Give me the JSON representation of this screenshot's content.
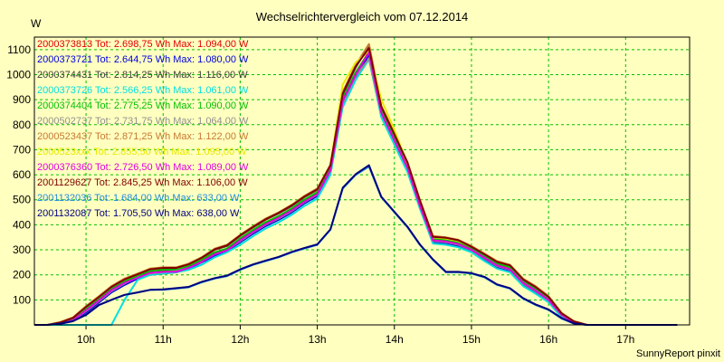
{
  "chart_data": {
    "type": "line",
    "title": "Wechselrichtervergleich vom 07.12.2014",
    "ylabel": "W",
    "credit": "SunnyReport pinxit",
    "x_ticks": [
      "10h",
      "11h",
      "12h",
      "13h",
      "14h",
      "15h",
      "16h",
      "17h"
    ],
    "y_ticks": [
      100,
      200,
      300,
      400,
      500,
      600,
      700,
      800,
      900,
      1000,
      1100
    ],
    "xlim": [
      9.33,
      17.83
    ],
    "ylim": [
      0,
      1150
    ],
    "grid": true,
    "legend_position": "top-left",
    "x": [
      9.33,
      9.5,
      9.67,
      9.83,
      10.0,
      10.17,
      10.33,
      10.5,
      10.67,
      10.83,
      11.0,
      11.17,
      11.33,
      11.5,
      11.67,
      11.83,
      12.0,
      12.17,
      12.33,
      12.5,
      12.67,
      12.83,
      13.0,
      13.17,
      13.33,
      13.5,
      13.67,
      13.83,
      14.0,
      14.17,
      14.33,
      14.5,
      14.67,
      14.83,
      15.0,
      15.17,
      15.33,
      15.5,
      15.67,
      15.83,
      16.0,
      16.17,
      16.33,
      16.5,
      16.67,
      16.83,
      17.0,
      17.17,
      17.33,
      17.5,
      17.67
    ],
    "series": [
      {
        "name": "2000373813",
        "legend": "2000373813 Tot: 2.698,75 Wh Max: 1.094,00 W",
        "color": "#e00000",
        "values": [
          0,
          0,
          5,
          20,
          60,
          100,
          140,
          170,
          190,
          210,
          215,
          215,
          230,
          255,
          285,
          300,
          340,
          375,
          405,
          430,
          460,
          495,
          525,
          620,
          900,
          1000,
          1094,
          850,
          740,
          630,
          480,
          340,
          335,
          325,
          300,
          270,
          240,
          225,
          170,
          140,
          100,
          40,
          10,
          0,
          0,
          0,
          0,
          0,
          0,
          0,
          0
        ]
      },
      {
        "name": "2000373721",
        "legend": "2000373721 Tot: 2.644,75 Wh Max: 1.080,00 W",
        "color": "#0000e0",
        "values": [
          0,
          0,
          5,
          15,
          50,
          90,
          130,
          160,
          185,
          200,
          205,
          210,
          225,
          250,
          275,
          295,
          330,
          365,
          395,
          420,
          450,
          485,
          515,
          610,
          880,
          990,
          1080,
          840,
          730,
          620,
          470,
          330,
          325,
          315,
          295,
          260,
          230,
          215,
          160,
          130,
          95,
          35,
          8,
          0,
          0,
          0,
          0,
          0,
          0,
          0,
          0
        ]
      },
      {
        "name": "2000374431",
        "legend": "2000374431 Tot: 2.814,25 Wh Max: 1.116,00 W",
        "color": "#404040",
        "values": [
          0,
          0,
          10,
          25,
          70,
          110,
          150,
          180,
          200,
          220,
          225,
          225,
          240,
          265,
          300,
          315,
          355,
          390,
          420,
          445,
          475,
          510,
          540,
          635,
          920,
          1030,
          1116,
          870,
          760,
          645,
          495,
          350,
          345,
          335,
          310,
          280,
          250,
          235,
          180,
          150,
          110,
          45,
          12,
          0,
          0,
          0,
          0,
          0,
          0,
          0,
          0
        ]
      },
      {
        "name": "2000373726",
        "legend": "2000373726 Tot: 2.566,25 Wh Max: 1.061,00 W",
        "color": "#00e0e0",
        "values": [
          0,
          0,
          0,
          0,
          0,
          0,
          0,
          100,
          180,
          200,
          205,
          210,
          220,
          240,
          270,
          290,
          320,
          355,
          385,
          410,
          440,
          475,
          505,
          600,
          870,
          980,
          1061,
          830,
          720,
          610,
          465,
          325,
          320,
          310,
          290,
          255,
          225,
          210,
          155,
          125,
          90,
          30,
          5,
          0,
          0,
          0,
          0,
          0,
          0,
          0,
          0
        ]
      },
      {
        "name": "2000374404",
        "legend": "2000374404 Tot: 2.775,25 Wh Max: 1.090,00 W",
        "color": "#00c000",
        "values": [
          0,
          0,
          8,
          20,
          65,
          105,
          145,
          175,
          195,
          215,
          220,
          220,
          235,
          260,
          290,
          305,
          345,
          380,
          410,
          435,
          465,
          500,
          530,
          625,
          905,
          1010,
          1090,
          855,
          745,
          635,
          485,
          345,
          340,
          330,
          305,
          275,
          245,
          230,
          175,
          145,
          105,
          42,
          10,
          0,
          0,
          0,
          0,
          0,
          0,
          0,
          0
        ]
      },
      {
        "name": "2000502737",
        "legend": "2000502737 Tot: 2.731,75 Wh Max: 1.064,00 W",
        "color": "#909090",
        "values": [
          0,
          0,
          5,
          18,
          55,
          95,
          135,
          165,
          190,
          205,
          210,
          215,
          228,
          252,
          282,
          298,
          335,
          370,
          400,
          425,
          455,
          490,
          520,
          615,
          885,
          995,
          1064,
          845,
          735,
          625,
          475,
          335,
          330,
          320,
          298,
          265,
          235,
          220,
          165,
          135,
          98,
          38,
          9,
          0,
          0,
          0,
          0,
          0,
          0,
          0,
          0
        ]
      },
      {
        "name": "2000523437",
        "legend": "2000523437 Tot: 2.871,25 Wh Max: 1.122,00 W",
        "color": "#c87832",
        "values": [
          0,
          0,
          12,
          30,
          75,
          115,
          155,
          185,
          205,
          225,
          230,
          230,
          245,
          270,
          305,
          320,
          360,
          395,
          425,
          450,
          480,
          515,
          545,
          640,
          930,
          1040,
          1122,
          875,
          765,
          650,
          500,
          355,
          350,
          340,
          315,
          285,
          255,
          240,
          185,
          155,
          115,
          48,
          15,
          0,
          0,
          0,
          0,
          0,
          0,
          0,
          0
        ]
      },
      {
        "name": "2000523xxx",
        "legend": "2000523xxx Tot: 2.855,50 Wh Max: 1.095,00 W",
        "color": "#e8e800",
        "values": [
          0,
          0,
          10,
          28,
          72,
          112,
          152,
          182,
          202,
          222,
          228,
          228,
          242,
          268,
          302,
          318,
          358,
          392,
          422,
          448,
          478,
          512,
          542,
          638,
          960,
          1050,
          1095,
          900,
          780,
          640,
          490,
          350,
          345,
          335,
          312,
          282,
          252,
          238,
          182,
          152,
          112,
          46,
          14,
          0,
          0,
          0,
          0,
          0,
          0,
          0,
          0
        ]
      },
      {
        "name": "2000376360",
        "legend": "2000376360 Tot: 2.726,50 Wh Max: 1.089,00 W",
        "color": "#e000e0",
        "values": [
          0,
          0,
          5,
          18,
          58,
          98,
          138,
          168,
          188,
          208,
          212,
          212,
          228,
          252,
          282,
          298,
          338,
          372,
          402,
          428,
          458,
          492,
          522,
          618,
          895,
          1000,
          1089,
          848,
          738,
          628,
          478,
          338,
          333,
          323,
          300,
          268,
          238,
          222,
          168,
          138,
          100,
          40,
          10,
          0,
          0,
          0,
          0,
          0,
          0,
          0,
          0
        ]
      },
      {
        "name": "2001129627",
        "legend": "2001129627 Tot: 2.845,25 Wh Max: 1.106,00 W",
        "color": "#800000",
        "values": [
          0,
          0,
          10,
          28,
          72,
          112,
          152,
          182,
          202,
          222,
          228,
          228,
          242,
          268,
          302,
          318,
          358,
          392,
          422,
          448,
          478,
          512,
          542,
          638,
          925,
          1035,
          1106,
          872,
          762,
          648,
          498,
          352,
          348,
          338,
          312,
          282,
          252,
          238,
          182,
          152,
          112,
          46,
          14,
          0,
          0,
          0,
          0,
          0,
          0,
          0,
          0
        ]
      },
      {
        "name": "2001132036",
        "legend": "2001132036 Tot: 1.684,00 Wh Max: 633,00 W",
        "color": "#1e8cdc",
        "values": [
          0,
          0,
          5,
          15,
          40,
          80,
          100,
          120,
          130,
          140,
          140,
          145,
          150,
          170,
          185,
          195,
          220,
          240,
          255,
          270,
          290,
          305,
          320,
          380,
          545,
          600,
          633,
          510,
          450,
          390,
          320,
          260,
          210,
          210,
          205,
          190,
          160,
          145,
          105,
          80,
          60,
          25,
          5,
          0,
          0,
          0,
          0,
          0,
          0,
          0,
          0
        ]
      },
      {
        "name": "2001132087",
        "legend": "2001132087 Tot: 1.705,50 Wh Max: 638,00 W",
        "color": "#000080",
        "values": [
          0,
          0,
          5,
          15,
          40,
          80,
          100,
          120,
          130,
          140,
          142,
          147,
          152,
          172,
          187,
          197,
          222,
          242,
          257,
          272,
          292,
          307,
          322,
          382,
          548,
          603,
          638,
          512,
          452,
          392,
          322,
          262,
          212,
          212,
          207,
          192,
          162,
          147,
          107,
          82,
          62,
          27,
          6,
          0,
          0,
          0,
          0,
          0,
          0,
          0,
          0
        ]
      }
    ]
  }
}
